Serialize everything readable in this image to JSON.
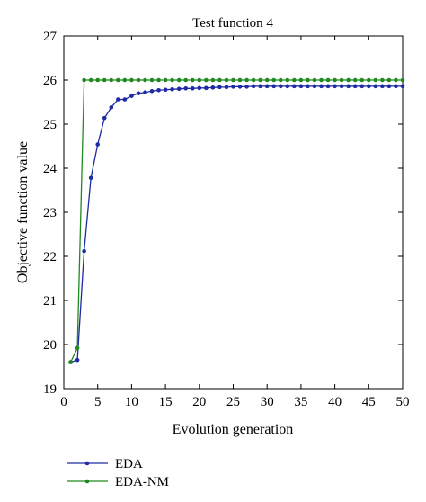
{
  "chart_data": {
    "type": "line",
    "title": "Test function 4",
    "xlabel": "Evolution generation",
    "ylabel": "Objective function value",
    "xlim": [
      0,
      50
    ],
    "ylim": [
      19,
      27
    ],
    "xticks": [
      0,
      5,
      10,
      15,
      20,
      25,
      30,
      35,
      40,
      45,
      50
    ],
    "yticks": [
      19,
      20,
      21,
      22,
      23,
      24,
      25,
      26,
      27
    ],
    "grid": false,
    "legend_position": "bottom-left-outside",
    "x": [
      1,
      2,
      3,
      4,
      5,
      6,
      7,
      8,
      9,
      10,
      11,
      12,
      13,
      14,
      15,
      16,
      17,
      18,
      19,
      20,
      21,
      22,
      23,
      24,
      25,
      26,
      27,
      28,
      29,
      30,
      31,
      32,
      33,
      34,
      35,
      36,
      37,
      38,
      39,
      40,
      41,
      42,
      43,
      44,
      45,
      46,
      47,
      48,
      49,
      50
    ],
    "series": [
      {
        "name": "EDA",
        "color": "#1f2aa6",
        "values": [
          19.6,
          19.65,
          22.12,
          23.78,
          24.54,
          25.14,
          25.38,
          25.56,
          25.56,
          25.64,
          25.7,
          25.72,
          25.75,
          25.77,
          25.78,
          25.79,
          25.8,
          25.81,
          25.81,
          25.82,
          25.82,
          25.83,
          25.84,
          25.84,
          25.85,
          25.85,
          25.85,
          25.86,
          25.86,
          25.86,
          25.86,
          25.86,
          25.86,
          25.86,
          25.86,
          25.86,
          25.86,
          25.86,
          25.86,
          25.86,
          25.86,
          25.86,
          25.86,
          25.86,
          25.86,
          25.86,
          25.86,
          25.86,
          25.86,
          25.86
        ]
      },
      {
        "name": "EDA-NM",
        "color": "#1f8a1f",
        "values": [
          19.6,
          19.92,
          26.0,
          26.0,
          26.0,
          26.0,
          26.0,
          26.0,
          26.0,
          26.0,
          26.0,
          26.0,
          26.0,
          26.0,
          26.0,
          26.0,
          26.0,
          26.0,
          26.0,
          26.0,
          26.0,
          26.0,
          26.0,
          26.0,
          26.0,
          26.0,
          26.0,
          26.0,
          26.0,
          26.0,
          26.0,
          26.0,
          26.0,
          26.0,
          26.0,
          26.0,
          26.0,
          26.0,
          26.0,
          26.0,
          26.0,
          26.0,
          26.0,
          26.0,
          26.0,
          26.0,
          26.0,
          26.0,
          26.0,
          26.0
        ]
      }
    ]
  }
}
